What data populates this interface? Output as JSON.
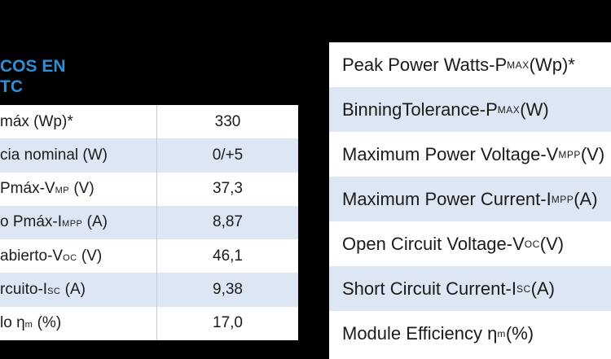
{
  "left": {
    "heading_line1": "COS EN",
    "heading_line2": "TC",
    "rows": [
      {
        "label": "máx (Wp)*",
        "sub": "",
        "unit": "",
        "value": "330"
      },
      {
        "label": "cia nominal (W)",
        "sub": "",
        "unit": "",
        "value": "0/+5"
      },
      {
        "label": "Pmáx-V",
        "sub": "MP",
        "unit": " (V)",
        "value": "37,3"
      },
      {
        "label": "o Pmáx-I",
        "sub": "MPP",
        "unit": " (A)",
        "value": "8,87"
      },
      {
        "label": "abierto-V",
        "sub": "OC",
        "unit": " (V)",
        "value": "46,1"
      },
      {
        "label": "rcuito-I",
        "sub": "SC",
        "unit": " (A)",
        "value": "9,38"
      },
      {
        "label": "lo η",
        "sub": "m",
        "unit": " (%)",
        "value": "17,0"
      }
    ]
  },
  "right": {
    "rows": [
      {
        "label": "Peak Power Watts-P",
        "sub": "MAX",
        "unit": " (Wp)*"
      },
      {
        "label": "BinningTolerance-P",
        "sub": " MAX",
        "unit": " (W)"
      },
      {
        "label": "Maximum Power Voltage-V",
        "sub": "MPP",
        "unit": " (V)"
      },
      {
        "label": "Maximum Power Current-I",
        "sub": "MPP",
        "unit": " (A)"
      },
      {
        "label": "Open Circuit Voltage-V",
        "sub": "OC",
        "unit": " (V)"
      },
      {
        "label": "Short Circuit Current-I",
        "sub": "SC",
        "unit": " (A)"
      },
      {
        "label": "Module Efficiency  η",
        "sub": "m",
        "unit": " (%)"
      }
    ]
  },
  "colors": {
    "heading": "#2f8fd6",
    "stripe": "#dde7f3",
    "background": "#000000"
  }
}
